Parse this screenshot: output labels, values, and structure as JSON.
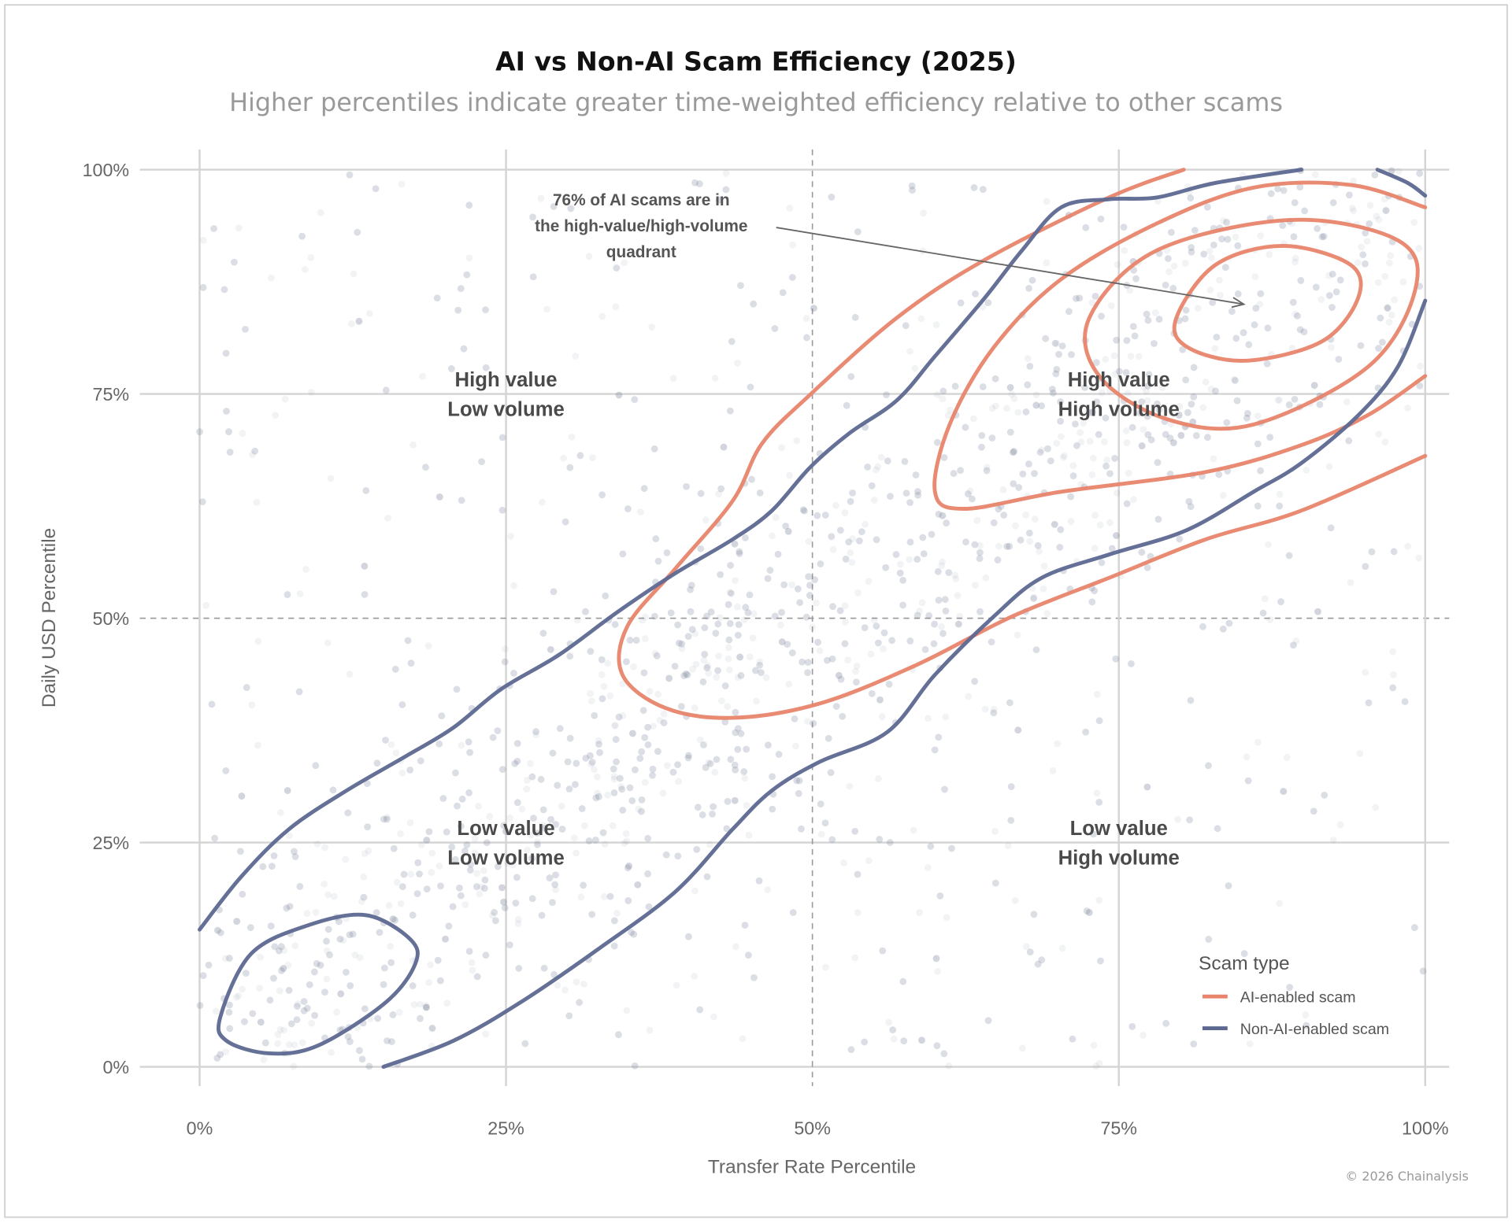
{
  "chart_data": {
    "type": "scatter",
    "title": "AI vs Non-AI Scam Efficiency (2025)",
    "subtitle": "Higher percentiles indicate greater time-weighted efficiency relative to other scams",
    "xlabel": "Transfer Rate Percentile",
    "ylabel": "Daily USD Percentile",
    "xlim": [
      0,
      100
    ],
    "ylim": [
      0,
      100
    ],
    "x_ticks": [
      "0%",
      "25%",
      "50%",
      "75%",
      "100%"
    ],
    "y_ticks": [
      "0%",
      "25%",
      "50%",
      "75%",
      "100%"
    ],
    "tick_values": [
      0,
      25,
      50,
      75,
      100
    ],
    "median_lines": {
      "x": 50,
      "y": 50
    },
    "grid": true,
    "legend": {
      "title": "Scam type",
      "placement": "bottom-right",
      "items": [
        {
          "label": "AI-enabled scam",
          "color": "#e8846b"
        },
        {
          "label": "Non-AI-enabled scam",
          "color": "#5d6891"
        }
      ]
    },
    "scatter_color": "#8a90a8",
    "contours": [
      {
        "series": "AI-enabled scam",
        "closed": false,
        "points": [
          [
            80.3,
            100
          ],
          [
            74.2,
            96.9
          ],
          [
            64.0,
            89.9
          ],
          [
            56.9,
            83.5
          ],
          [
            49.8,
            74.9
          ],
          [
            45.9,
            69.5
          ],
          [
            43.5,
            63.1
          ],
          [
            38.8,
            55.5
          ],
          [
            34.9,
            49.1
          ],
          [
            34.5,
            43.7
          ],
          [
            38.0,
            40.0
          ],
          [
            43.5,
            38.9
          ],
          [
            50.6,
            40.5
          ],
          [
            58.5,
            44.8
          ],
          [
            66.3,
            50.2
          ],
          [
            74.2,
            54.5
          ],
          [
            82.1,
            58.8
          ],
          [
            89.9,
            62.0
          ],
          [
            100,
            68.1
          ]
        ]
      },
      {
        "series": "AI-enabled scam",
        "closed": false,
        "points": [
          [
            100,
            95.8
          ],
          [
            93.9,
            98.3
          ],
          [
            86.0,
            98.0
          ],
          [
            78.1,
            94.0
          ],
          [
            70.3,
            87.8
          ],
          [
            64.8,
            80.2
          ],
          [
            61.2,
            71.6
          ],
          [
            60.0,
            64.1
          ],
          [
            62.4,
            62.2
          ],
          [
            70.3,
            64.1
          ],
          [
            82.1,
            66.3
          ],
          [
            89.9,
            69.3
          ],
          [
            95.4,
            72.7
          ],
          [
            100,
            77.0
          ]
        ]
      },
      {
        "series": "AI-enabled scam",
        "closed": true,
        "points": [
          [
            72.6,
            83.5
          ],
          [
            78.1,
            91.0
          ],
          [
            89.1,
            94.4
          ],
          [
            97.8,
            92.1
          ],
          [
            99.2,
            86.7
          ],
          [
            95.4,
            78.1
          ],
          [
            86.0,
            71.6
          ],
          [
            78.9,
            72.2
          ],
          [
            73.4,
            77.0
          ]
        ]
      },
      {
        "series": "AI-enabled scam",
        "closed": true,
        "points": [
          [
            79.7,
            83.5
          ],
          [
            82.9,
            89.4
          ],
          [
            88.4,
            91.5
          ],
          [
            93.9,
            89.4
          ],
          [
            94.5,
            85.6
          ],
          [
            91.5,
            80.8
          ],
          [
            85.2,
            78.7
          ],
          [
            80.5,
            80.3
          ]
        ]
      },
      {
        "series": "Non-AI-enabled scam",
        "closed": false,
        "points": [
          [
            0,
            15.3
          ],
          [
            3.4,
            21.2
          ],
          [
            7.3,
            26.5
          ],
          [
            12.0,
            30.8
          ],
          [
            16.8,
            34.6
          ],
          [
            20.7,
            37.8
          ],
          [
            24.6,
            42.1
          ],
          [
            29.3,
            45.9
          ],
          [
            34.1,
            50.7
          ],
          [
            38.8,
            55.0
          ],
          [
            43.5,
            58.8
          ],
          [
            46.7,
            62.0
          ],
          [
            49.8,
            66.8
          ],
          [
            53.0,
            70.6
          ],
          [
            56.9,
            74.3
          ],
          [
            60.0,
            79.2
          ],
          [
            64.0,
            85.6
          ],
          [
            67.1,
            91.0
          ],
          [
            70.3,
            95.8
          ],
          [
            74.2,
            96.7
          ],
          [
            78.1,
            96.9
          ],
          [
            82.8,
            98.5
          ],
          [
            89.9,
            100
          ]
        ]
      },
      {
        "series": "Non-AI-enabled scam",
        "closed": false,
        "points": [
          [
            15.0,
            0
          ],
          [
            20.7,
            2.9
          ],
          [
            26.2,
            7.2
          ],
          [
            32.5,
            13.1
          ],
          [
            38.8,
            19.5
          ],
          [
            43.5,
            26.5
          ],
          [
            46.7,
            30.8
          ],
          [
            50.6,
            34.0
          ],
          [
            56.1,
            37.3
          ],
          [
            60.0,
            43.7
          ],
          [
            64.8,
            50.2
          ],
          [
            68.7,
            54.5
          ],
          [
            74.2,
            57.1
          ],
          [
            80.5,
            59.8
          ],
          [
            86.0,
            64.1
          ],
          [
            89.9,
            67.3
          ],
          [
            94.6,
            72.7
          ],
          [
            97.8,
            78.1
          ],
          [
            100,
            85.4
          ]
        ]
      },
      {
        "series": "Non-AI-enabled scam",
        "closed": false,
        "points": [
          [
            96.1,
            100
          ],
          [
            98.6,
            98.5
          ],
          [
            100,
            97.1
          ]
        ]
      },
      {
        "series": "Non-AI-enabled scam",
        "closed": true,
        "points": [
          [
            1.7,
            5.6
          ],
          [
            4.2,
            12.6
          ],
          [
            8.9,
            15.8
          ],
          [
            13.6,
            16.9
          ],
          [
            17.2,
            14.2
          ],
          [
            17.6,
            11.5
          ],
          [
            15.2,
            7.2
          ],
          [
            9.7,
            2.4
          ],
          [
            5.7,
            1.5
          ],
          [
            2.2,
            2.9
          ]
        ]
      }
    ],
    "annotation": {
      "lines": [
        "76% of AI scams are in",
        "the high-value/high-volume",
        "quadrant"
      ],
      "arrow_to": [
        85.2,
        85.0
      ]
    },
    "quadrant_labels": [
      {
        "lines": [
          "High value",
          "Low volume"
        ],
        "x": 25,
        "y": 75
      },
      {
        "lines": [
          "High value",
          "High volume"
        ],
        "x": 75,
        "y": 75
      },
      {
        "lines": [
          "Low value",
          "Low volume"
        ],
        "x": 25,
        "y": 25
      },
      {
        "lines": [
          "Low value",
          "High volume"
        ],
        "x": 75,
        "y": 25
      }
    ]
  },
  "footer": {
    "copyright": "© 2026 Chainalysis"
  }
}
